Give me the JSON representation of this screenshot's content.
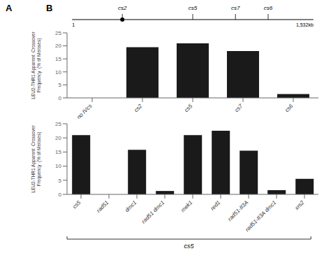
{
  "chart_data": [
    {
      "type": "bar",
      "categories": [
        "no IVcs",
        "cs2",
        "cs5",
        "cs7",
        "cs6"
      ],
      "values": [
        0,
        19.5,
        21.0,
        18.0,
        1.5
      ],
      "ylabel": "LEU2-THR1 Apparent  Crossover\nFrequency  (% of Meioses)",
      "ylim": [
        0,
        25
      ],
      "yticks": [
        0,
        5,
        10,
        15,
        20,
        25
      ],
      "color": "#1a1a1a",
      "grid": false,
      "annotations": [
        "A",
        "B",
        "1",
        "1,532kb",
        "cs2",
        "cs5",
        "cs7",
        "cs6"
      ]
    },
    {
      "type": "bar",
      "categories": [
        "cs5",
        "rad51",
        "dmc1",
        "rad51 dmc1",
        "mek1",
        "red1",
        "rad51-II3A",
        "rad51-II3A dmc1",
        "xrs2"
      ],
      "values": [
        21.0,
        0,
        15.8,
        1.2,
        21.0,
        22.5,
        15.5,
        1.5,
        5.5
      ],
      "ylabel": "LEU2-THR1 Apparent  Crossover\nFrequency  (% of Meioses)",
      "ylim": [
        0,
        25
      ],
      "yticks": [
        0,
        5,
        10,
        15,
        20,
        25
      ],
      "color": "#1a1a1a",
      "grid": false,
      "annotations": [
        "cs5"
      ]
    }
  ]
}
